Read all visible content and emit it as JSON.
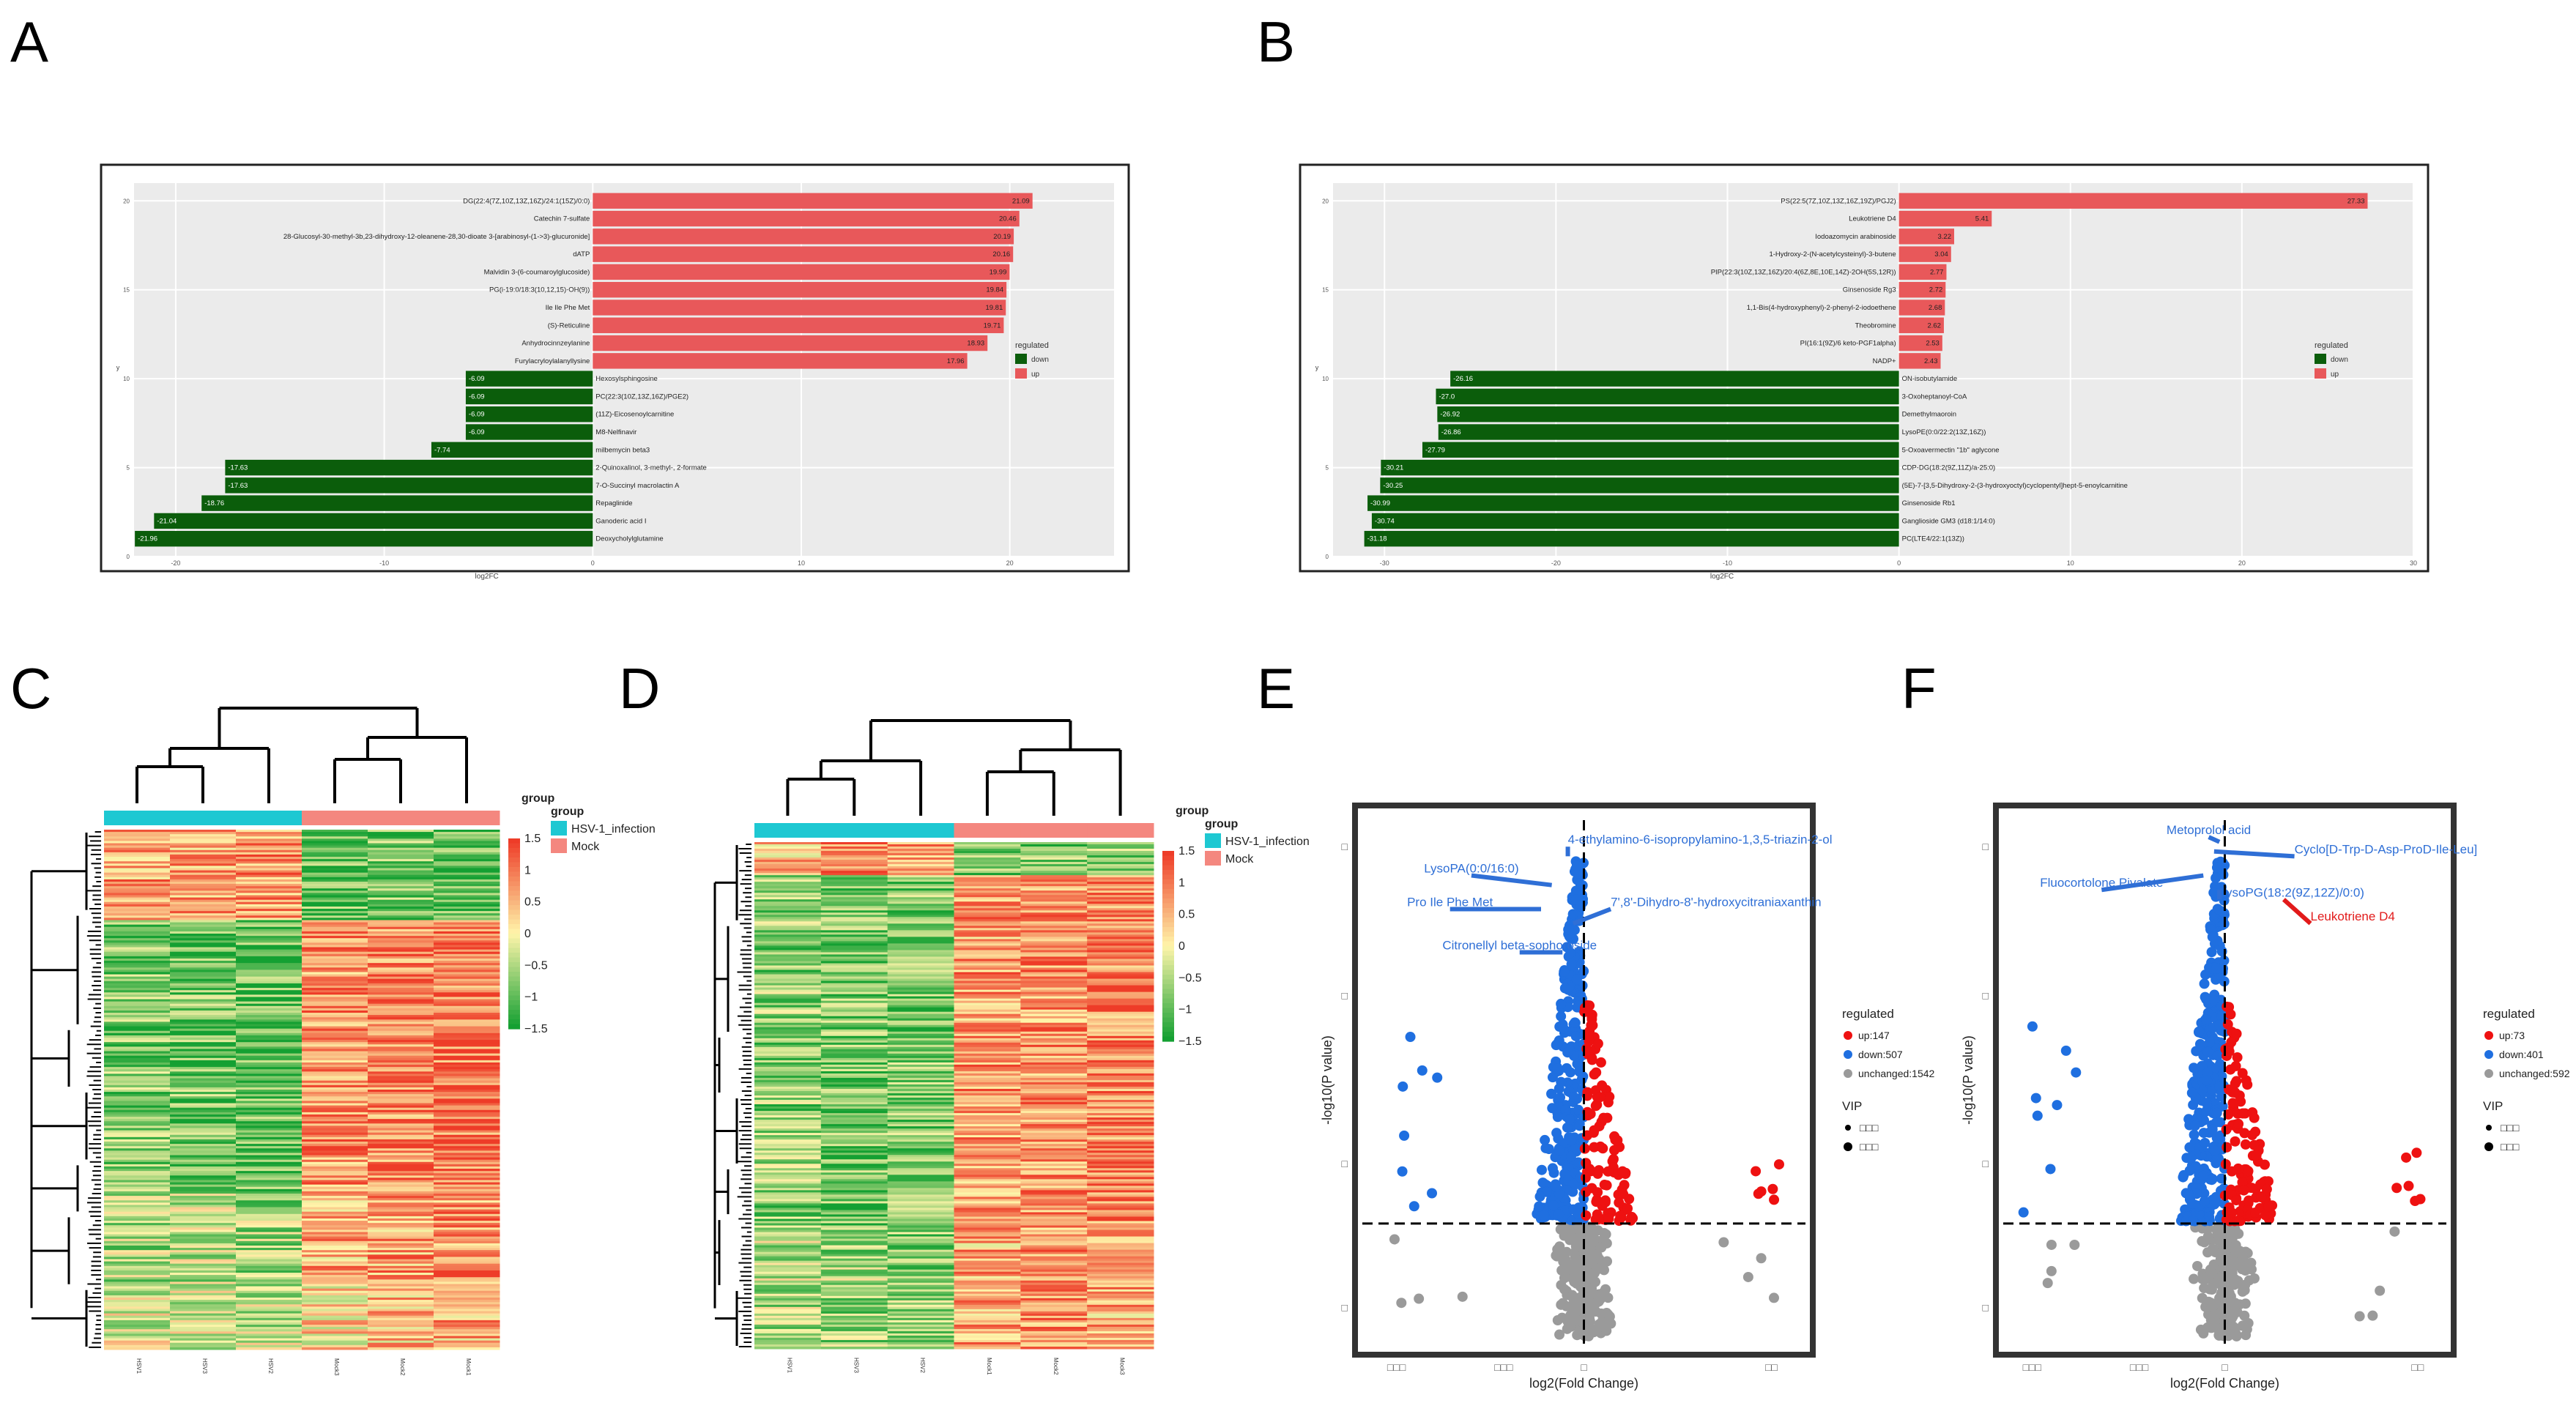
{
  "panels": {
    "A": {
      "letter": "A"
    },
    "B": {
      "letter": "B"
    },
    "C": {
      "letter": "C"
    },
    "D": {
      "letter": "D"
    },
    "E": {
      "letter": "E"
    },
    "F": {
      "letter": "F"
    }
  },
  "colors": {
    "up": "#e8585a",
    "down": "#0b5d0b",
    "volcano_up": "#ee1111",
    "volcano_down": "#1f6fe0",
    "volcano_unchanged": "#9a9a9a",
    "label_blue": "#2f6fd6",
    "label_red": "#e21a1a",
    "hsv": "#1ec8d2",
    "mock": "#f4877f"
  },
  "chart_data": [
    {
      "panel": "A",
      "type": "bar",
      "orientation": "horizontal",
      "xlabel": "log2FC",
      "ylabel": "y",
      "xlim": [
        -22,
        25
      ],
      "xticks": [
        -20,
        -10,
        0,
        10,
        20
      ],
      "xtick_labels": [
        "-20",
        "-10",
        "0",
        "10",
        "20"
      ],
      "yticks": [
        0,
        5,
        10,
        15,
        20
      ],
      "yticks_labels": [
        "0",
        "5",
        "10",
        "15",
        "20"
      ],
      "grid": true,
      "legend": {
        "title": "regulated",
        "entries": [
          "down",
          "up"
        ],
        "placement": "right"
      },
      "categories": [
        "DG(22:4(7Z,10Z,13Z,16Z)/24:1(15Z)/0:0)",
        "Catechin 7-sulfate",
        "28-Glucosyl-30-methyl-3b,23-dihydroxy-12-oleanene-28,30-dioate 3-[arabinosyl-(1->3)-glucuronide]",
        "dATP",
        "Malvidin 3-(6-coumaroylglucoside)",
        "PG(i-19:0/18:3(10,12,15)-OH(9))",
        "Ile Ile Phe Met",
        "(S)-Reticuline",
        "Anhydrocinnzeylanine",
        "Furylacryloylalanyllysine",
        "Hexosylsphingosine",
        "PC(22:3(10Z,13Z,16Z)/PGE2)",
        "(11Z)-Eicosenoylcarnitine",
        "M8-Nelfinavir",
        "milbemycin beta3",
        "2-Quinoxalinol, 3-methyl-, 2-formate",
        "7-O-Succinyl macrolactin A",
        "Repaglinide",
        "Ganoderic acid I",
        "Deoxycholylglutamine"
      ],
      "values": [
        21.09,
        20.46,
        20.19,
        20.16,
        19.99,
        19.84,
        19.81,
        19.71,
        18.93,
        17.96,
        -6.09,
        -6.09,
        -6.09,
        -6.09,
        -7.74,
        -17.63,
        -17.63,
        -18.76,
        -21.04,
        -21.96
      ],
      "value_labels": [
        "21.09",
        "20.46",
        "20.19",
        "20.16",
        "19.99",
        "19.84",
        "19.81",
        "19.71",
        "18.93",
        "17.96",
        "-6.09",
        "-6.09",
        "-6.09",
        "-6.09",
        "-7.74",
        "-17.63",
        "-17.63",
        "-18.76",
        "-21.04",
        "-21.96"
      ]
    },
    {
      "panel": "B",
      "type": "bar",
      "orientation": "horizontal",
      "xlabel": "log2FC",
      "ylabel": "y",
      "xlim": [
        -33,
        30
      ],
      "xticks": [
        -30,
        -20,
        -10,
        0,
        10,
        20,
        30
      ],
      "xtick_labels": [
        "-30",
        "-20",
        "-10",
        "0",
        "10",
        "20",
        "30"
      ],
      "yticks": [
        0,
        5,
        10,
        15,
        20
      ],
      "yticks_labels": [
        "0",
        "5",
        "10",
        "15",
        "20"
      ],
      "grid": true,
      "legend": {
        "title": "regulated",
        "entries": [
          "down",
          "up"
        ],
        "placement": "right"
      },
      "categories": [
        "PS(22:5(7Z,10Z,13Z,16Z,19Z)/PGJ2)",
        "Leukotriene D4",
        "Iodoazomycin arabinoside",
        "1-Hydroxy-2-(N-acetylcysteinyl)-3-butene",
        "PIP(22:3(10Z,13Z,16Z)/20:4(6Z,8E,10E,14Z)-2OH(5S,12R))",
        "Ginsenoside Rg3",
        "1,1-Bis(4-hydroxyphenyl)-2-phenyl-2-iodoethene",
        "Theobromine",
        "PI(16:1(9Z)/6 keto-PGF1alpha)",
        "NADP+",
        "ON-isobutylamide",
        "3-Oxoheptanoyl-CoA",
        "Demethylmaoroin",
        "LysoPE(0:0/22:2(13Z,16Z))",
        "5-Oxoavermectin \"1b\" aglycone",
        "CDP-DG(18:2(9Z,11Z)/a-25:0)",
        "(5E)-7-[3,5-Dihydroxy-2-(3-hydroxyoctyl)cyclopentyl]hept-5-enoylcarnitine",
        "Ginsenoside Rb1",
        "Ganglioside GM3 (d18:1/14:0)",
        "PC(LTE4/22:1(13Z))"
      ],
      "values": [
        27.33,
        5.41,
        3.22,
        3.04,
        2.77,
        2.72,
        2.68,
        2.62,
        2.53,
        2.43,
        -26.16,
        -27.0,
        -26.92,
        -26.86,
        -27.79,
        -30.21,
        -30.25,
        -30.99,
        -30.74,
        -31.18
      ],
      "value_labels": [
        "27.33",
        "5.41",
        "3.22",
        "3.04",
        "2.77",
        "2.72",
        "2.68",
        "2.62",
        "2.53",
        "2.43",
        "-26.16",
        "-27.0",
        "-26.92",
        "-26.86",
        "-27.79",
        "-30.21",
        "-30.25",
        "-30.99",
        "-30.74",
        "-31.18"
      ]
    },
    {
      "panel": "C",
      "type": "heatmap",
      "columns": [
        "HSV1",
        "HSV3",
        "HSV2",
        "Mock3",
        "Mock2",
        "Mock1"
      ],
      "column_groups": [
        "HSV-1_infection",
        "HSV-1_infection",
        "HSV-1_infection",
        "Mock",
        "Mock",
        "Mock"
      ],
      "legend": {
        "title": "group",
        "entries": [
          "HSV-1_infection",
          "Mock"
        ],
        "placement": "right"
      },
      "scale": {
        "range": [
          -1.5,
          1.5
        ],
        "ticks": [
          1.5,
          1,
          0.5,
          0,
          -0.5,
          -1,
          -1.5
        ],
        "tick_labels": [
          "1.5",
          "1",
          "0.5",
          "0",
          "−0.5",
          "−1",
          "−1.5"
        ]
      },
      "row_blocks": [
        {
          "rows": 40,
          "values": [
            0.7,
            0.6,
            0.8,
            -1.0,
            -0.9,
            -1.1
          ]
        },
        {
          "rows": 120,
          "values": [
            -0.8,
            -0.9,
            -1.0,
            0.8,
            0.9,
            1.0
          ]
        },
        {
          "rows": 40,
          "values": [
            -0.5,
            -0.4,
            -0.6,
            0.6,
            0.7,
            0.8
          ]
        },
        {
          "rows": 30,
          "values": [
            -0.2,
            -0.3,
            -0.4,
            0.2,
            0.5,
            0.6
          ]
        }
      ]
    },
    {
      "panel": "D",
      "type": "heatmap",
      "columns": [
        "HSV1",
        "HSV3",
        "HSV2",
        "Mock1",
        "Mock2",
        "Mock3"
      ],
      "column_groups": [
        "HSV-1_infection",
        "HSV-1_infection",
        "HSV-1_infection",
        "Mock",
        "Mock",
        "Mock"
      ],
      "legend": {
        "title": "group",
        "entries": [
          "HSV-1_infection",
          "Mock"
        ],
        "placement": "right"
      },
      "scale": {
        "range": [
          -1.5,
          1.5
        ],
        "ticks": [
          1.5,
          1,
          0.5,
          0,
          -0.5,
          -1,
          -1.5
        ],
        "tick_labels": [
          "1.5",
          "1",
          "0.5",
          "0",
          "−0.5",
          "−1",
          "−1.5"
        ]
      },
      "row_blocks": [
        {
          "rows": 15,
          "values": [
            0.5,
            0.8,
            0.7,
            -0.8,
            -0.9,
            -0.7
          ]
        },
        {
          "rows": 160,
          "values": [
            -0.7,
            -0.9,
            -0.8,
            0.7,
            0.8,
            0.9
          ]
        },
        {
          "rows": 55,
          "values": [
            -0.5,
            -0.6,
            -0.7,
            0.6,
            0.7,
            0.6
          ]
        }
      ]
    },
    {
      "panel": "E",
      "type": "scatter",
      "xlabel": "log2(Fold Change)",
      "ylabel": "-log10(P value)",
      "legend": {
        "title": "regulated",
        "entries": [
          "up:147",
          "down:507",
          "unchanged:1542"
        ],
        "placement": "right"
      },
      "legend2": {
        "title": "VIP",
        "entries": [
          "□□□",
          "□□□"
        ]
      },
      "counts": {
        "up": 147,
        "down": 507,
        "unchanged": 1542
      },
      "xlim": [
        -4,
        4
      ],
      "ylim": [
        0,
        10
      ],
      "xticks": [
        -3.5,
        -1.5,
        0,
        3.5
      ],
      "xtick_labels": [
        "□□□",
        "□□□",
        "□",
        "□□"
      ],
      "yticks": [
        0.6,
        3.6,
        7.1,
        10.2
      ],
      "ytick_labels": [
        "□",
        "□",
        "□",
        "□"
      ],
      "threshold": {
        "p": 2.35,
        "fc": 0
      },
      "annotations": [
        {
          "text": "4-ethylamino-6-isopropylamino-1,3,5-triazin-2-ol",
          "x": -0.3,
          "y": 10.0,
          "tx": -0.3,
          "ty": 10.2
        },
        {
          "text": "LysoPA(0:0/16:0)",
          "x": -0.6,
          "y": 9.4,
          "tx": -2.1,
          "ty": 9.6
        },
        {
          "text": "Pro Ile Phe Met",
          "x": -0.8,
          "y": 8.9,
          "tx": -2.5,
          "ty": 8.9
        },
        {
          "text": "7',8'-Dihydro-8'-hydroxycitraniaxanthin",
          "x": -0.2,
          "y": 8.6,
          "tx": 0.5,
          "ty": 8.9
        },
        {
          "text": "Citronellyl beta-sophoroside",
          "x": -0.4,
          "y": 8.0,
          "tx": -1.2,
          "ty": 8.0
        }
      ]
    },
    {
      "panel": "F",
      "type": "scatter",
      "xlabel": "log2(Fold Change)",
      "ylabel": "-log10(P value)",
      "legend": {
        "title": "regulated",
        "entries": [
          "up:73",
          "down:401",
          "unchanged:592"
        ],
        "placement": "right"
      },
      "legend2": {
        "title": "VIP",
        "entries": [
          "□□□",
          "□□□"
        ]
      },
      "counts": {
        "up": 73,
        "down": 401,
        "unchanged": 592
      },
      "xlim": [
        -4,
        4
      ],
      "ylim": [
        0,
        10
      ],
      "xticks": [
        -3.6,
        -1.6,
        0,
        3.6
      ],
      "xtick_labels": [
        "□□□",
        "□□□",
        "□",
        "□□"
      ],
      "yticks": [
        0.6,
        3.6,
        7.1,
        10.2
      ],
      "ytick_labels": [
        "□",
        "□",
        "□",
        "□"
      ],
      "threshold": {
        "p": 2.35,
        "fc": 0
      },
      "annotations": [
        {
          "text": "Metoprolol acid",
          "x": -0.1,
          "y": 10.3,
          "tx": -0.3,
          "ty": 10.4
        },
        {
          "text": "Cyclo[D-Trp-D-Asp-ProD-Ile-Leu]",
          "x": -0.2,
          "y": 10.1,
          "tx": 1.3,
          "ty": 10.0
        },
        {
          "text": "Fluocortolone Pivalate",
          "x": -0.4,
          "y": 9.6,
          "tx": -2.3,
          "ty": 9.3
        },
        {
          "text": "LysoPG(18:2(9Z,12Z)/0:0)",
          "x": -0.1,
          "y": 9.3,
          "tx": -0.1,
          "ty": 9.1
        },
        {
          "text": "Leukotriene D4",
          "x": 1.1,
          "y": 9.1,
          "tx": 1.6,
          "ty": 8.6
        }
      ]
    }
  ]
}
